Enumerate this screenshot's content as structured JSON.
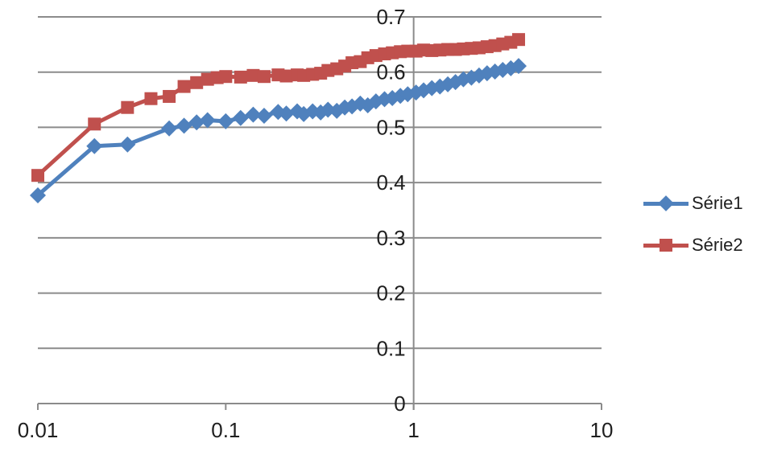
{
  "chart_data": {
    "type": "line",
    "x_scale": "log",
    "xlim": [
      0.01,
      10
    ],
    "ylim": [
      0,
      0.7
    ],
    "x_ticks": [
      0.01,
      0.1,
      1,
      10
    ],
    "x_tick_labels": [
      "0.01",
      "0.1",
      "1",
      "10"
    ],
    "y_ticks": [
      0,
      0.1,
      0.2,
      0.3,
      0.4,
      0.5,
      0.6,
      0.7
    ],
    "y_tick_labels": [
      "0",
      "0.1",
      "0.2",
      "0.3",
      "0.4",
      "0.5",
      "0.6",
      "0.7"
    ],
    "grid": "horizontal-on",
    "gridline_color": "#8b8b8b",
    "axis_label_color": "#1f1f1f",
    "legend_position": "right",
    "title": "",
    "xlabel": "",
    "ylabel": "",
    "series": [
      {
        "name": "Série1",
        "color": "#4F81BD",
        "marker": "diamond",
        "points": [
          [
            0.01,
            0.377
          ],
          [
            0.02,
            0.466
          ],
          [
            0.03,
            0.469
          ],
          [
            0.05,
            0.498
          ],
          [
            0.06,
            0.503
          ],
          [
            0.07,
            0.509
          ],
          [
            0.08,
            0.513
          ],
          [
            0.1,
            0.511
          ],
          [
            0.12,
            0.517
          ],
          [
            0.14,
            0.523
          ],
          [
            0.16,
            0.521
          ],
          [
            0.19,
            0.528
          ],
          [
            0.21,
            0.525
          ],
          [
            0.24,
            0.529
          ],
          [
            0.26,
            0.524
          ],
          [
            0.29,
            0.529
          ],
          [
            0.32,
            0.527
          ],
          [
            0.35,
            0.532
          ],
          [
            0.39,
            0.53
          ],
          [
            0.43,
            0.536
          ],
          [
            0.47,
            0.538
          ],
          [
            0.52,
            0.543
          ],
          [
            0.57,
            0.54
          ],
          [
            0.63,
            0.547
          ],
          [
            0.7,
            0.551
          ],
          [
            0.77,
            0.553
          ],
          [
            0.85,
            0.557
          ],
          [
            0.93,
            0.56
          ],
          [
            1.03,
            0.563
          ],
          [
            1.13,
            0.567
          ],
          [
            1.25,
            0.571
          ],
          [
            1.38,
            0.574
          ],
          [
            1.52,
            0.578
          ],
          [
            1.67,
            0.582
          ],
          [
            1.84,
            0.587
          ],
          [
            2.03,
            0.59
          ],
          [
            2.23,
            0.594
          ],
          [
            2.46,
            0.598
          ],
          [
            2.71,
            0.601
          ],
          [
            2.98,
            0.604
          ],
          [
            3.29,
            0.607
          ],
          [
            3.62,
            0.611
          ]
        ]
      },
      {
        "name": "Série2",
        "color": "#C0504D",
        "marker": "square",
        "points": [
          [
            0.01,
            0.413
          ],
          [
            0.02,
            0.506
          ],
          [
            0.03,
            0.536
          ],
          [
            0.04,
            0.552
          ],
          [
            0.05,
            0.556
          ],
          [
            0.06,
            0.574
          ],
          [
            0.07,
            0.581
          ],
          [
            0.08,
            0.587
          ],
          [
            0.09,
            0.59
          ],
          [
            0.1,
            0.592
          ],
          [
            0.12,
            0.591
          ],
          [
            0.14,
            0.594
          ],
          [
            0.16,
            0.592
          ],
          [
            0.19,
            0.595
          ],
          [
            0.21,
            0.593
          ],
          [
            0.24,
            0.595
          ],
          [
            0.26,
            0.594
          ],
          [
            0.29,
            0.596
          ],
          [
            0.32,
            0.598
          ],
          [
            0.35,
            0.603
          ],
          [
            0.39,
            0.606
          ],
          [
            0.43,
            0.611
          ],
          [
            0.47,
            0.617
          ],
          [
            0.52,
            0.619
          ],
          [
            0.57,
            0.626
          ],
          [
            0.63,
            0.63
          ],
          [
            0.7,
            0.633
          ],
          [
            0.77,
            0.635
          ],
          [
            0.85,
            0.637
          ],
          [
            0.93,
            0.638
          ],
          [
            1.03,
            0.638
          ],
          [
            1.13,
            0.64
          ],
          [
            1.25,
            0.639
          ],
          [
            1.38,
            0.64
          ],
          [
            1.52,
            0.641
          ],
          [
            1.67,
            0.641
          ],
          [
            1.84,
            0.642
          ],
          [
            2.03,
            0.643
          ],
          [
            2.23,
            0.644
          ],
          [
            2.46,
            0.646
          ],
          [
            2.71,
            0.648
          ],
          [
            2.98,
            0.651
          ],
          [
            3.29,
            0.654
          ],
          [
            3.62,
            0.659
          ]
        ]
      }
    ]
  },
  "legend": {
    "items": [
      {
        "label": "Série1"
      },
      {
        "label": "Série2"
      }
    ]
  }
}
